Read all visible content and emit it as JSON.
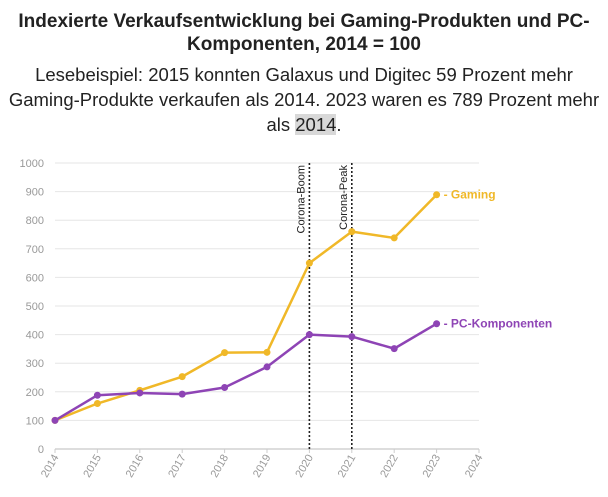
{
  "header": {
    "title": "Indexierte Verkaufsentwicklung bei Gaming-Produkten und PC-Komponenten, 2014 = 100",
    "subtitle_main": "Lesebeispiel: 2015 konnten Galaxus und Digitec 59 Prozent mehr Gaming-Produkte verkaufen als 2014. 2023 waren es 789 Prozent mehr als",
    "subtitle_highlight": "2014",
    "subtitle_end": "."
  },
  "chart_data": {
    "type": "line",
    "x": [
      2014,
      2015,
      2016,
      2017,
      2018,
      2019,
      2020,
      2021,
      2022,
      2023
    ],
    "xlim": [
      2014,
      2024
    ],
    "xticks": [
      "2014",
      "2015",
      "2016",
      "2017",
      "2018",
      "2019",
      "2020",
      "2021",
      "2022",
      "2023",
      "2024"
    ],
    "ylim": [
      0,
      1000
    ],
    "yticks": [
      "0",
      "100",
      "200",
      "300",
      "400",
      "500",
      "600",
      "700",
      "800",
      "900",
      "1000"
    ],
    "grid": true,
    "series": [
      {
        "name": "Gaming",
        "label": "- Gaming",
        "color": "#f0b828",
        "values": [
          100,
          159,
          205,
          253,
          337,
          338,
          650,
          760,
          738,
          889
        ]
      },
      {
        "name": "PC-Komponenten",
        "label": "- PC-Komponenten",
        "color": "#8e44b5",
        "values": [
          100,
          188,
          196,
          192,
          215,
          287,
          400,
          393,
          351,
          438
        ]
      }
    ],
    "annotations": [
      {
        "x": 2020,
        "label": "Corona-Boom"
      },
      {
        "x": 2021,
        "label": "Corona-Peak"
      }
    ]
  }
}
